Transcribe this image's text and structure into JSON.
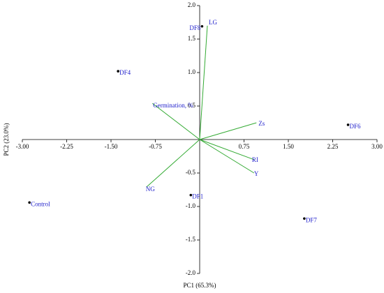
{
  "chart_data": {
    "type": "biplot",
    "xlabel": "PC1 (65.3%)",
    "ylabel": "PC2 (23.0%)",
    "xlim": [
      -3,
      3
    ],
    "ylim": [
      -2,
      2
    ],
    "xticks": [
      {
        "value": -3,
        "label": "-3.00"
      },
      -2.25,
      {
        "value": -1.5,
        "label": "-1.50"
      },
      -0.75,
      0.75,
      {
        "value": 1.5,
        "label": "1.50"
      },
      2.25,
      {
        "value": 3,
        "label": "3.00"
      }
    ],
    "yticks": [
      {
        "value": 2,
        "label": "2.0"
      },
      1.5,
      {
        "value": 1,
        "label": "1.0"
      },
      0.5,
      -0.5,
      {
        "value": -1,
        "label": "-1.0"
      },
      -1.5,
      {
        "value": -2,
        "label": "-2.0"
      }
    ],
    "points": {
      "labels": [
        "DF8",
        "DF4",
        "DF6",
        "Control",
        "DF1",
        "DF7"
      ],
      "x": [
        0.04,
        -1.38,
        2.51,
        -2.88,
        -0.15,
        1.77
      ],
      "y": [
        1.69,
        1.02,
        0.22,
        -0.94,
        -0.83,
        -1.18
      ],
      "color": "#000000"
    },
    "loadings": {
      "labels": [
        "LG",
        "Germination, %",
        "Zs",
        "RI",
        "Y",
        "NG"
      ],
      "x": [
        0.13,
        -0.8,
        0.96,
        0.92,
        0.92,
        -0.9
      ],
      "y": [
        1.7,
        0.54,
        0.25,
        -0.3,
        -0.5,
        -0.71
      ],
      "color": "#33aa33"
    }
  }
}
